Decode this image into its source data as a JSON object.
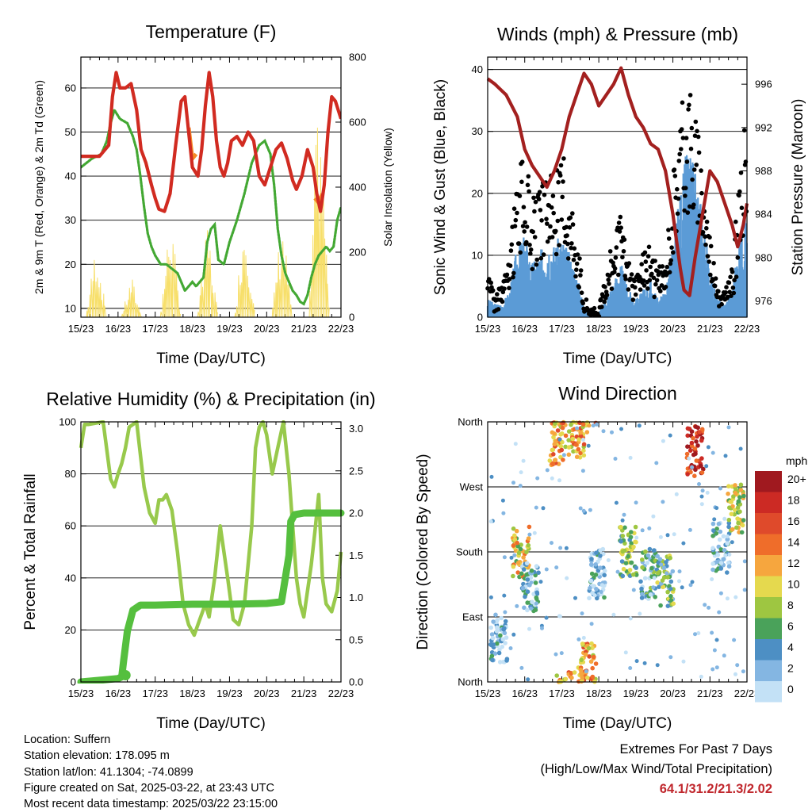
{
  "colors": {
    "temp_red": "#d12b21",
    "temp_orange": "#f58a25",
    "dewpoint_green": "#43a833",
    "solar_yellow": "#f7df6a",
    "rh_lightgreen": "#98c94c",
    "precip_green": "#55bf3e",
    "gust_black": "#000000",
    "wind_blue": "#5b9bd6",
    "pressure_maroon": "#a3201f",
    "extremes_red": "#c0272d"
  },
  "x_tick_labels": [
    "15/23",
    "16/23",
    "17/23",
    "18/23",
    "19/23",
    "20/23",
    "21/23",
    "22/23"
  ],
  "x_axis_label": "Time (Day/UTC)",
  "chart_data": [
    {
      "id": "temperature",
      "type": "line",
      "title": "Temperature (F)",
      "xlabel": "Time (Day/UTC)",
      "ylabel": "2m & 9m T (Red, Orange) & 2m Td (Green)",
      "y2label": "Solar Insolation (Yellow)",
      "xlim": [
        0,
        7
      ],
      "ylim": [
        8,
        67
      ],
      "y_ticks": [
        10,
        20,
        30,
        40,
        50,
        60
      ],
      "y2lim": [
        0,
        800
      ],
      "y2_ticks": [
        0,
        200,
        400,
        600,
        800
      ],
      "grid": true,
      "series": [
        {
          "label": "T 2m",
          "color": "#d12b21",
          "x": [
            0,
            0.5,
            0.75,
            0.85,
            0.95,
            1.05,
            1.2,
            1.35,
            1.5,
            1.62,
            1.75,
            1.9,
            2.0,
            2.1,
            2.25,
            2.4,
            2.55,
            2.7,
            2.8,
            2.9,
            3.0,
            3.15,
            3.25,
            3.35,
            3.45,
            3.55,
            3.65,
            3.75,
            3.85,
            3.95,
            4.05,
            4.2,
            4.35,
            4.5,
            4.65,
            4.8,
            4.95,
            5.1,
            5.25,
            5.4,
            5.55,
            5.7,
            5.8,
            5.95,
            6.1,
            6.25,
            6.35,
            6.45,
            6.55,
            6.65,
            6.75,
            6.85,
            7.0
          ],
          "y": [
            44.5,
            44.5,
            47,
            58,
            63.5,
            60,
            60,
            61,
            55,
            46,
            43,
            38,
            35,
            32.5,
            32,
            36,
            47,
            57,
            58,
            50,
            42,
            40,
            46,
            56,
            63.5,
            58,
            48,
            42,
            40,
            43,
            48,
            49,
            47,
            50,
            48,
            40,
            38,
            42,
            46,
            47.5,
            44,
            39,
            37,
            40,
            46,
            42,
            36,
            32,
            38,
            50,
            58,
            57,
            53
          ]
        },
        {
          "label": "T 9m",
          "color": "#f58a25",
          "x": [
            2.9,
            3.0,
            3.1,
            6.3,
            6.4,
            6.5
          ],
          "y": [
            51,
            44,
            45,
            35,
            34,
            36
          ]
        },
        {
          "label": "Td 2m",
          "color": "#43a833",
          "x": [
            0,
            0.3,
            0.55,
            0.7,
            0.8,
            0.9,
            1.05,
            1.25,
            1.4,
            1.5,
            1.6,
            1.7,
            1.8,
            1.9,
            2.0,
            2.15,
            2.3,
            2.45,
            2.6,
            2.7,
            2.8,
            2.9,
            3.0,
            3.1,
            3.2,
            3.3,
            3.4,
            3.5,
            3.6,
            3.7,
            3.85,
            4.0,
            4.2,
            4.4,
            4.6,
            4.8,
            4.95,
            5.1,
            5.2,
            5.3,
            5.4,
            5.5,
            5.6,
            5.7,
            5.8,
            5.9,
            6.0,
            6.1,
            6.2,
            6.3,
            6.4,
            6.5,
            6.6,
            6.7,
            6.8,
            6.9,
            7.0
          ],
          "y": [
            42,
            44,
            45,
            48,
            52,
            55,
            53,
            52,
            49,
            46,
            40,
            33,
            27,
            24,
            22,
            20,
            20,
            19,
            18,
            16,
            14,
            15,
            16,
            15,
            16,
            17,
            25,
            28,
            29,
            21,
            20,
            25,
            30,
            36,
            43,
            47,
            48,
            45,
            38,
            28,
            22,
            18,
            16,
            14,
            13,
            11.5,
            11,
            13,
            17,
            20,
            22,
            23,
            24,
            23,
            24,
            30,
            33
          ]
        },
        {
          "label": "Solar",
          "color": "#f7df6a",
          "axis": "y2",
          "peak_x": [
            0.4,
            1.35,
            2.4,
            3.4,
            4.4,
            5.4,
            6.4
          ],
          "peak_y": [
            250,
            130,
            340,
            300,
            360,
            330,
            780
          ]
        }
      ]
    },
    {
      "id": "winds",
      "type": "scatter",
      "title": "Winds (mph) & Pressure (mb)",
      "xlabel": "Time (Day/UTC)",
      "ylabel": "Sonic Wind & Gust (Blue, Black)",
      "y2label": "Station Pressure (Maroon)",
      "xlim": [
        0,
        7
      ],
      "ylim": [
        0,
        42
      ],
      "y_ticks": [
        0,
        10,
        20,
        30,
        40
      ],
      "y2lim": [
        974.5,
        998.5
      ],
      "y2_ticks": [
        976,
        980,
        984,
        988,
        992,
        996
      ],
      "grid": true,
      "series": [
        {
          "label": "Wind",
          "color": "#5b9bd6",
          "x": [
            0,
            0.2,
            0.4,
            0.6,
            0.8,
            1.0,
            1.2,
            1.4,
            1.6,
            1.8,
            2.0,
            2.2,
            2.4,
            2.6,
            2.8,
            3.0,
            3.2,
            3.4,
            3.6,
            3.8,
            4.0,
            4.2,
            4.4,
            4.6,
            4.8,
            5.0,
            5.2,
            5.4,
            5.6,
            5.8,
            6.0,
            6.2,
            6.4,
            6.6,
            6.8,
            7.0
          ],
          "y": [
            2,
            1.5,
            1.5,
            3,
            8,
            9,
            6,
            7,
            9,
            8,
            9,
            7,
            5,
            1,
            0.5,
            0.5,
            2,
            4,
            6,
            3,
            2,
            3,
            4,
            2,
            3,
            8,
            14,
            19,
            16,
            12,
            5,
            2,
            1.5,
            3,
            9,
            12
          ]
        },
        {
          "label": "Gust",
          "color": "#000000",
          "x": [
            0,
            0.2,
            0.4,
            0.6,
            0.8,
            1.0,
            1.2,
            1.4,
            1.6,
            1.8,
            2.0,
            2.2,
            2.4,
            2.6,
            2.8,
            3.0,
            3.2,
            3.4,
            3.6,
            3.8,
            4.0,
            4.2,
            4.4,
            4.6,
            4.8,
            5.0,
            5.2,
            5.4,
            5.6,
            5.8,
            6.0,
            6.2,
            6.4,
            6.6,
            6.8,
            7.0
          ],
          "y": [
            6,
            3,
            4,
            8,
            18,
            20,
            14,
            16,
            18,
            17,
            20,
            16,
            12,
            2,
            1,
            1,
            5,
            10,
            12,
            7,
            5,
            8,
            9,
            6,
            7,
            18,
            27,
            31,
            26,
            20,
            11,
            4,
            3,
            6,
            17,
            26
          ]
        },
        {
          "label": "Pressure",
          "color": "#a3201f",
          "axis": "y2",
          "x": [
            0,
            0.2,
            0.5,
            0.8,
            1.0,
            1.2,
            1.4,
            1.6,
            1.8,
            2.0,
            2.2,
            2.4,
            2.6,
            2.8,
            3.0,
            3.2,
            3.4,
            3.6,
            3.8,
            4.0,
            4.2,
            4.4,
            4.6,
            4.8,
            5.0,
            5.2,
            5.3,
            5.45,
            5.6,
            5.8,
            6.0,
            6.2,
            6.4,
            6.6,
            6.75,
            6.9,
            7.0
          ],
          "y": [
            996.5,
            996,
            995,
            993,
            990,
            988.5,
            987.5,
            986.5,
            988,
            990,
            993,
            995,
            997,
            996,
            994,
            995,
            996,
            997.5,
            995,
            993,
            992,
            990.5,
            990,
            988,
            984,
            979,
            977,
            976.5,
            980,
            984,
            988,
            987,
            985,
            983,
            981,
            983,
            985
          ]
        }
      ]
    },
    {
      "id": "humidity",
      "type": "line",
      "title": "Relative Humidity (%) & Precipitation (in)",
      "xlabel": "Time (Day/UTC)",
      "ylabel": "Percent & Total Rainfall",
      "xlim": [
        0,
        7
      ],
      "ylim": [
        0,
        100
      ],
      "y_ticks": [
        0,
        20,
        40,
        60,
        80,
        100
      ],
      "y2lim": [
        0,
        3.08
      ],
      "y2_ticks": [
        "0.0",
        "0.5",
        "1.0",
        "1.5",
        "2.0",
        "2.5",
        "3.0"
      ],
      "grid": true,
      "series": [
        {
          "label": "RH",
          "color": "#98c94c",
          "x": [
            0,
            0.1,
            0.2,
            0.6,
            0.8,
            0.9,
            1.0,
            1.1,
            1.2,
            1.3,
            1.4,
            1.5,
            1.7,
            1.85,
            2.0,
            2.1,
            2.2,
            2.3,
            2.45,
            2.6,
            2.75,
            2.9,
            3.05,
            3.2,
            3.35,
            3.45,
            3.6,
            3.75,
            3.85,
            3.95,
            4.1,
            4.25,
            4.4,
            4.6,
            4.7,
            4.8,
            4.9,
            5.0,
            5.15,
            5.3,
            5.45,
            5.6,
            5.8,
            5.9,
            6.0,
            6.1,
            6.2,
            6.3,
            6.4,
            6.5,
            6.6,
            6.75,
            6.9,
            7.0
          ],
          "y": [
            90,
            99,
            99,
            100,
            78,
            75,
            80,
            84,
            90,
            98,
            99,
            100,
            75,
            65,
            61,
            70,
            70,
            72,
            66,
            50,
            30,
            22,
            18,
            24,
            30,
            25,
            40,
            60,
            50,
            40,
            24,
            22,
            30,
            60,
            90,
            98,
            100,
            95,
            80,
            90,
            100,
            80,
            40,
            30,
            25,
            35,
            45,
            58,
            72,
            40,
            30,
            27,
            35,
            50
          ]
        },
        {
          "label": "Precip",
          "color": "#55bf3e",
          "axis": "y2",
          "x": [
            0,
            0.5,
            1.0,
            1.1,
            1.15,
            1.25,
            1.4,
            1.6,
            2.0,
            3.0,
            4.0,
            5.0,
            5.4,
            5.6,
            5.65,
            5.75,
            6.0,
            6.5,
            7.0
          ],
          "y": [
            0,
            0.02,
            0.04,
            0.06,
            0.25,
            0.6,
            0.85,
            0.91,
            0.91,
            0.92,
            0.92,
            0.93,
            0.95,
            1.5,
            1.9,
            1.98,
            2.0,
            2.0,
            2.0
          ]
        }
      ]
    },
    {
      "id": "direction",
      "type": "scatter",
      "title": "Wind Direction",
      "xlabel": "Time (Day/UTC)",
      "ylabel": "Direction (Colored By Speed)",
      "xlim": [
        0,
        7
      ],
      "ylim": [
        0,
        360
      ],
      "y_tick_labels": [
        "North",
        "East",
        "South",
        "West",
        "North"
      ],
      "y_tick_values": [
        0,
        90,
        180,
        270,
        360
      ],
      "grid": true,
      "legend_title": "mph",
      "legend_labels": [
        "20+",
        "18",
        "16",
        "14",
        "12",
        "10",
        "8",
        "6",
        "4",
        "2",
        "0"
      ],
      "legend_colors": [
        "#a0191f",
        "#cc2a24",
        "#df4a2b",
        "#ef6d2a",
        "#f6a63e",
        "#e5d94e",
        "#9ec641",
        "#4aa25a",
        "#4d8fc4",
        "#84b6e2",
        "#c3e1f6"
      ],
      "clusters": [
        {
          "x": 0.3,
          "y": 60,
          "speed": 2
        },
        {
          "x": 0.9,
          "y": 180,
          "speed": 10
        },
        {
          "x": 1.15,
          "y": 130,
          "speed": 3
        },
        {
          "x": 1.9,
          "y": 335,
          "speed": 12
        },
        {
          "x": 2.4,
          "y": 345,
          "speed": 12
        },
        {
          "x": 2.7,
          "y": 20,
          "speed": 12
        },
        {
          "x": 2.95,
          "y": 150,
          "speed": 2
        },
        {
          "x": 3.8,
          "y": 180,
          "speed": 7
        },
        {
          "x": 4.35,
          "y": 150,
          "speed": 4
        },
        {
          "x": 4.8,
          "y": 140,
          "speed": 6
        },
        {
          "x": 5.6,
          "y": 320,
          "speed": 17
        },
        {
          "x": 6.3,
          "y": 185,
          "speed": 3
        },
        {
          "x": 6.7,
          "y": 240,
          "speed": 9
        }
      ]
    }
  ],
  "station_info": {
    "location": "Location: Suffern",
    "elevation": "Station elevation: 178.095 m",
    "latlon": "Station lat/lon: 41.1304; -74.0899",
    "created": "Figure created on Sat, 2025-03-22, at 23:43 UTC",
    "recent": "Most recent data timestamp: 2025/03/22 23:15:00"
  },
  "extremes": {
    "title": "Extremes For Past 7 Days",
    "subtitle": "(High/Low/Max Wind/Total Precipitation)",
    "values": "64.1/31.2/21.3/2.02"
  }
}
